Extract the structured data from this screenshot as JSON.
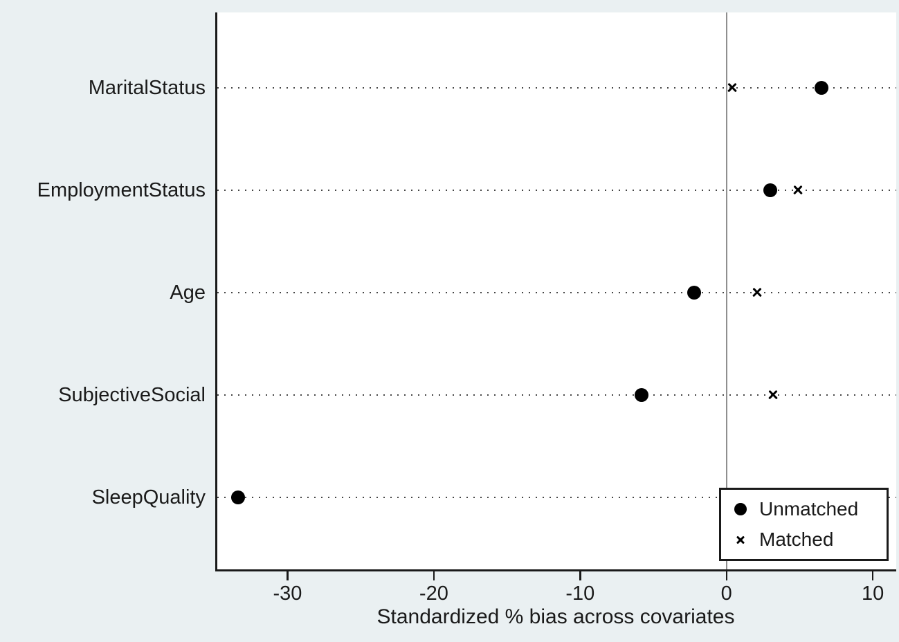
{
  "figure": {
    "background_color": "#eaf0f2",
    "plot_background": "#ffffff",
    "axis_color": "#1a1a1a",
    "zero_line_color": "#8f8f8f",
    "grid_dot_color": "#454545",
    "marker_color": "#000000"
  },
  "chart_data": {
    "type": "scatter",
    "title": "",
    "xlabel": "Standardized % bias across covariates",
    "ylabel": "",
    "categories": [
      "MaritalStatus",
      "EmploymentStatus",
      "Age",
      "SubjectiveSocial",
      "SleepQuality"
    ],
    "series": [
      {
        "name": "Unmatched",
        "marker": "circle",
        "values": [
          6.5,
          3.0,
          -2.2,
          -5.8,
          -33.4
        ]
      },
      {
        "name": "Matched",
        "marker": "x",
        "values": [
          0.4,
          4.9,
          2.1,
          3.2,
          null
        ]
      }
    ],
    "x_ticks": [
      -30,
      -20,
      -10,
      0,
      10
    ],
    "xlim": [
      -34.8,
      11.6
    ],
    "grid": "dotted-horizontal",
    "zero_reference_line": 0,
    "legend": {
      "position": "bottom-right"
    }
  }
}
